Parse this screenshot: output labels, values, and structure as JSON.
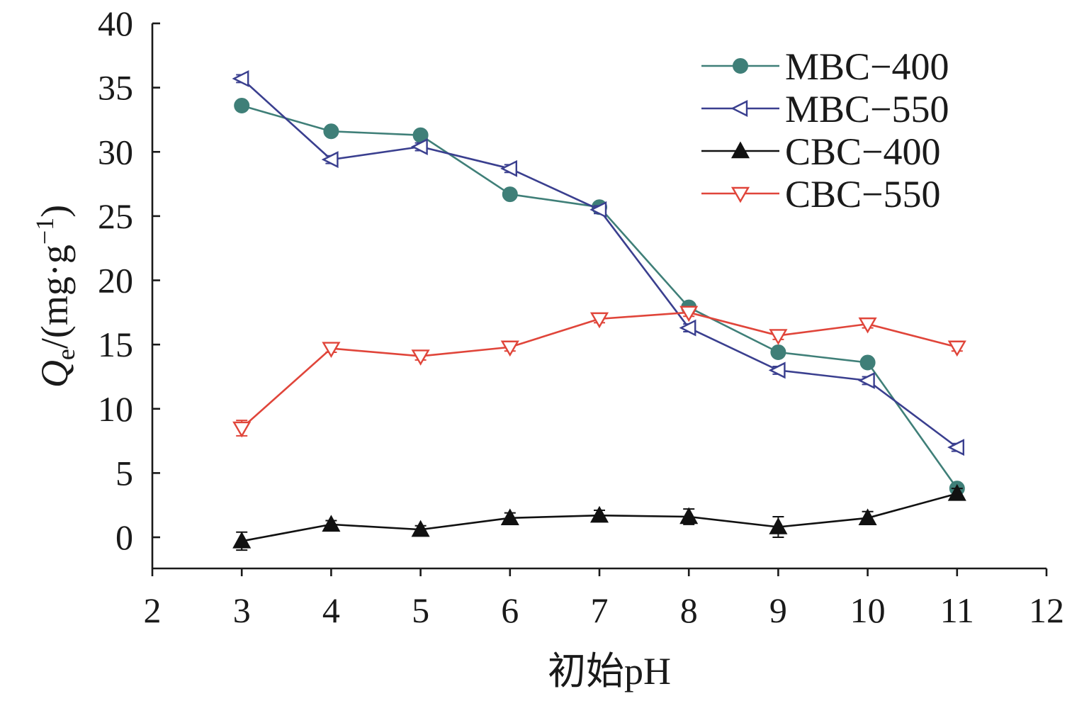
{
  "chart_data": {
    "type": "line",
    "title": "",
    "xlabel": "初始pH",
    "ylabel": {
      "symbol": "Q",
      "subscript": "e",
      "unit_prefix": "/(mg·g",
      "unit_sup": "−1",
      "unit_suffix": ")"
    },
    "xlim": [
      2,
      12
    ],
    "ylim": [
      -2.5,
      40
    ],
    "xticks": [
      "2",
      "3",
      "4",
      "5",
      "6",
      "7",
      "8",
      "9",
      "10",
      "11",
      "12"
    ],
    "yticks": [
      "0",
      "5",
      "10",
      "15",
      "20",
      "25",
      "30",
      "35",
      "40"
    ],
    "grid": false,
    "legend_position": "top-right",
    "x": [
      3,
      4,
      5,
      6,
      7,
      8,
      9,
      10,
      11
    ],
    "series": [
      {
        "name": "MBC−400",
        "color": "#3f7f78",
        "marker": "circle-filled",
        "values": [
          33.6,
          31.6,
          31.3,
          26.7,
          25.7,
          17.9,
          14.4,
          13.6,
          3.8
        ],
        "errors": [
          0.3,
          0.3,
          0.3,
          0.3,
          0.3,
          0.3,
          0.3,
          0.3,
          0.3
        ]
      },
      {
        "name": "MBC−550",
        "color": "#3a3f8f",
        "marker": "triangle-left-open",
        "values": [
          35.7,
          29.4,
          30.4,
          28.7,
          25.5,
          16.3,
          13.0,
          12.2,
          7.0
        ],
        "errors": [
          0.3,
          0.3,
          0.3,
          0.3,
          0.3,
          0.3,
          0.3,
          0.3,
          0.3
        ]
      },
      {
        "name": "CBC−400",
        "color": "#111111",
        "marker": "triangle-up-filled",
        "values": [
          -0.3,
          1.0,
          0.6,
          1.5,
          1.7,
          1.6,
          0.8,
          1.5,
          3.4
        ],
        "errors": [
          0.7,
          0.3,
          0.3,
          0.4,
          0.4,
          0.6,
          0.8,
          0.5,
          0.4
        ]
      },
      {
        "name": "CBC−550",
        "color": "#e0453a",
        "marker": "triangle-down-open",
        "values": [
          8.5,
          14.7,
          14.1,
          14.8,
          17.0,
          17.5,
          15.7,
          16.6,
          14.8
        ],
        "errors": [
          0.6,
          0.3,
          0.3,
          0.3,
          0.3,
          0.3,
          0.3,
          0.3,
          0.3
        ]
      }
    ]
  }
}
